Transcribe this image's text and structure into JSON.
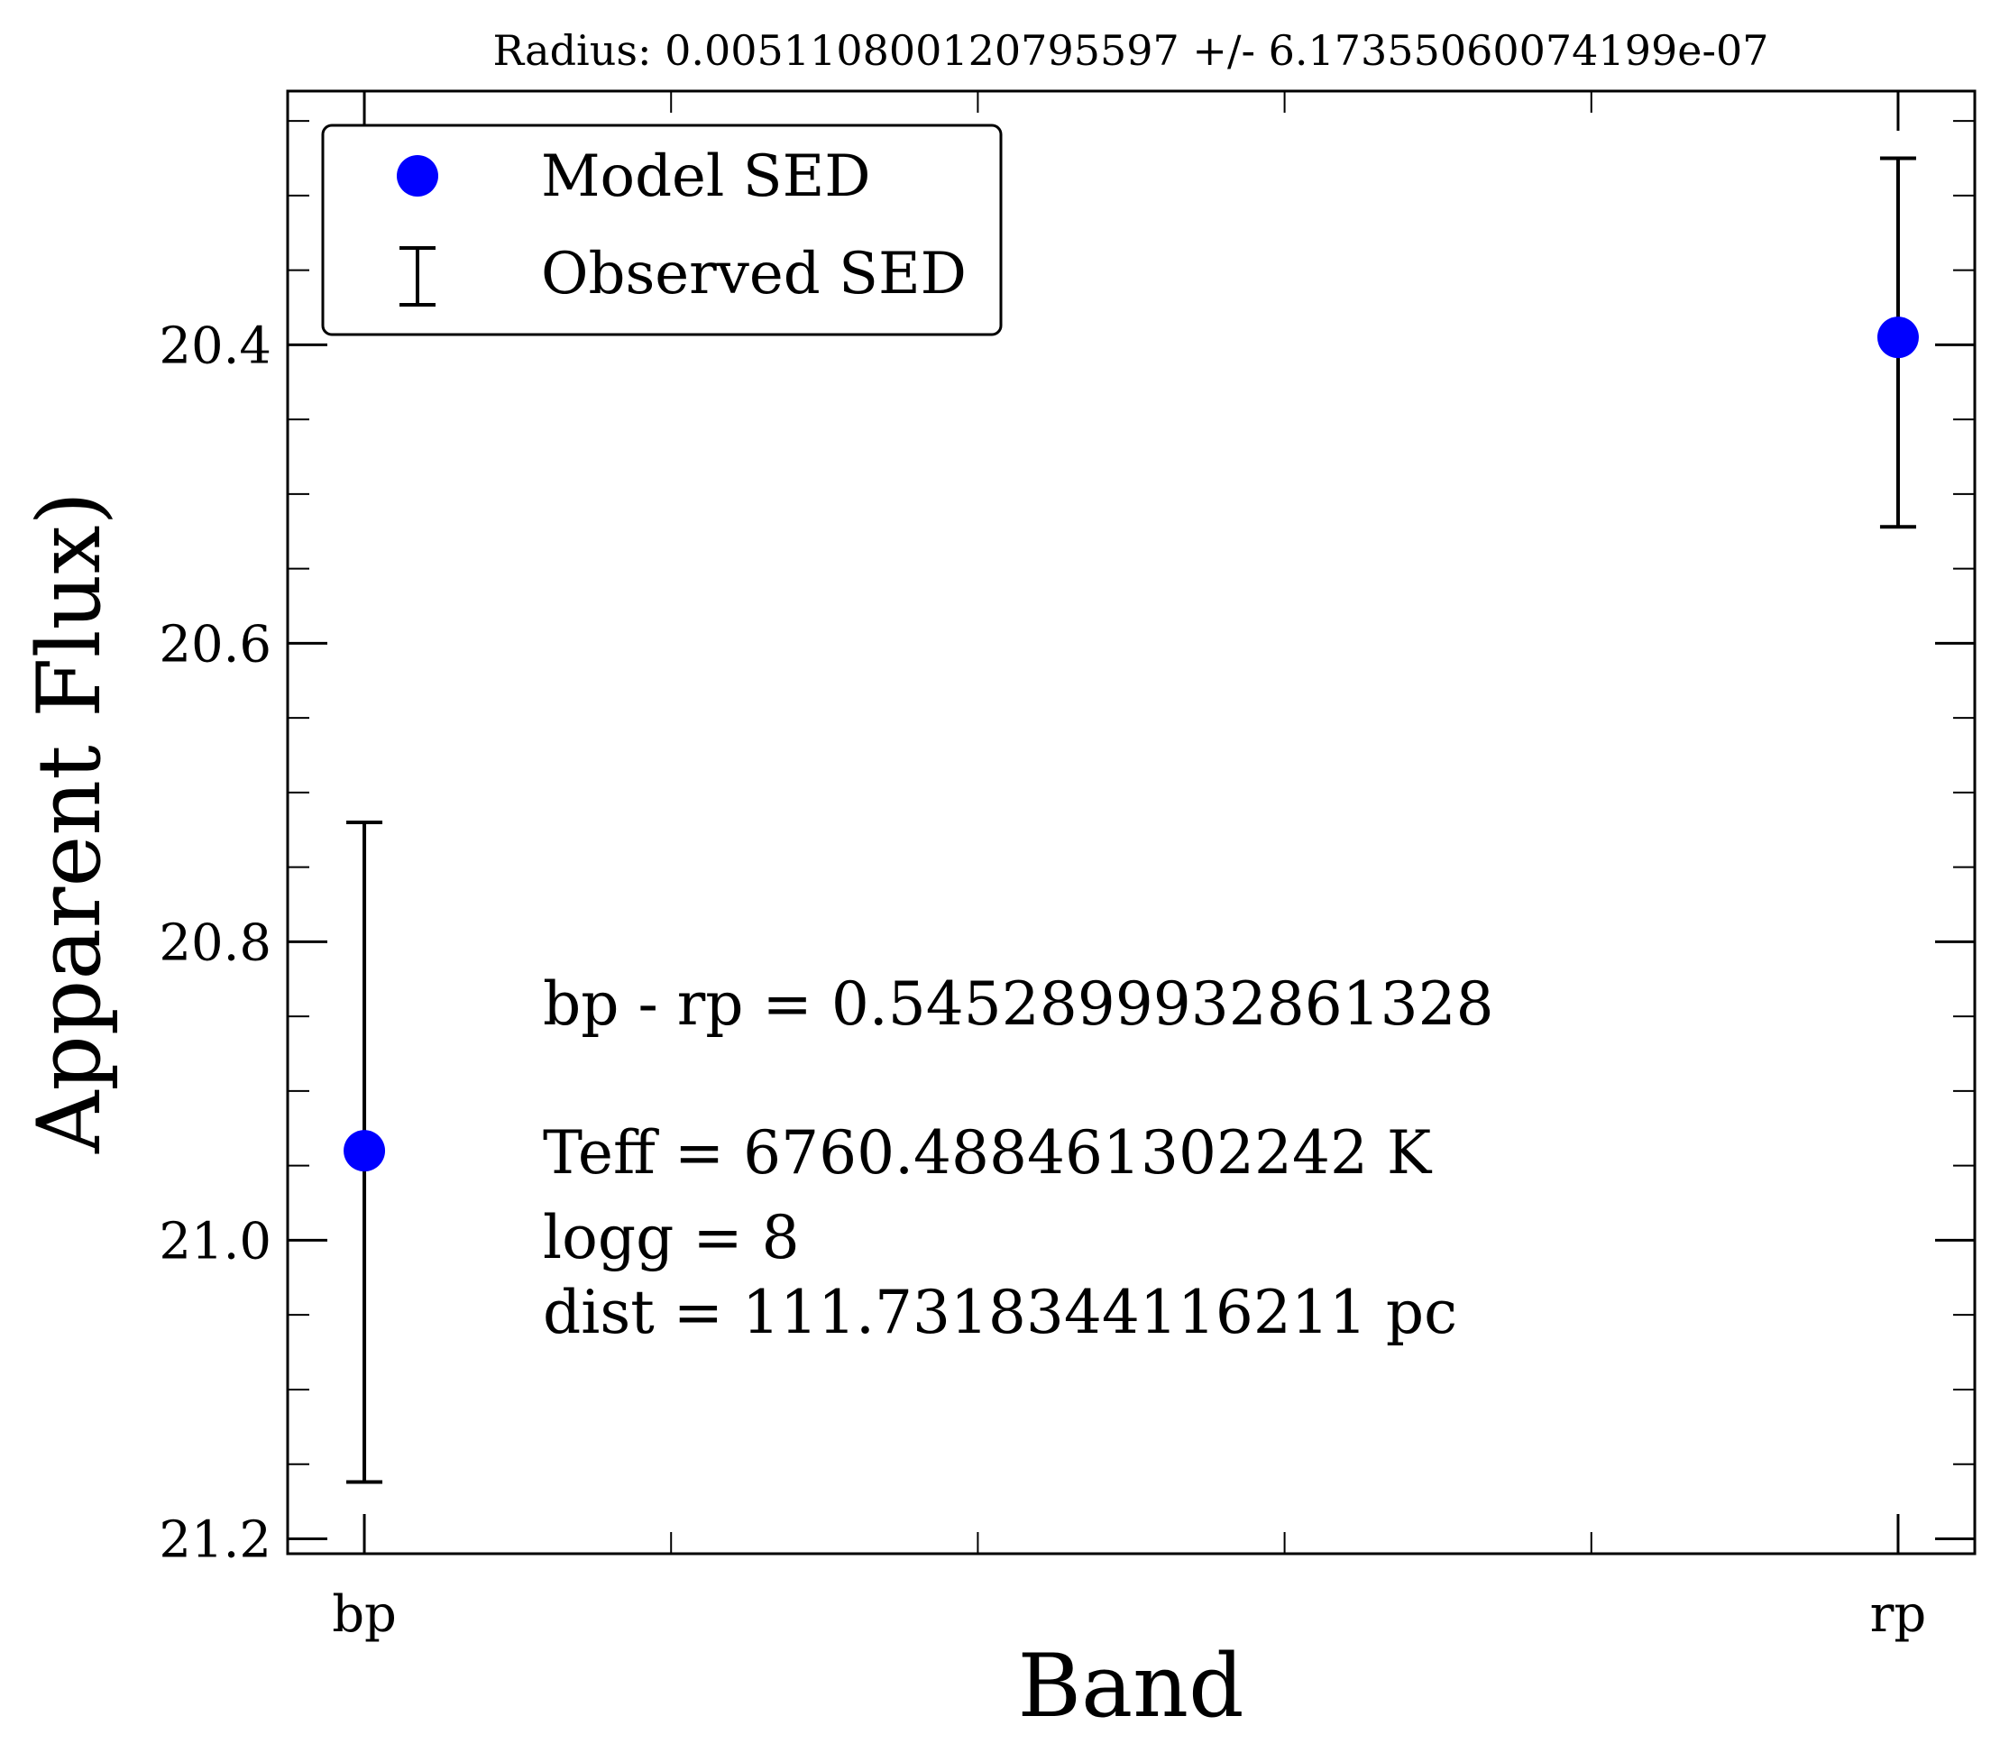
{
  "chart_data": {
    "type": "scatter",
    "title": "Radius: 0.005110800120795597 +/- 6.17355060074199e-07",
    "xlabel": "Band",
    "ylabel": "Apparent Flux)",
    "categories": [
      "bp",
      "rp"
    ],
    "x_range": [
      -0.25,
      5.25
    ],
    "ylim": [
      21.21,
      20.23
    ],
    "y_inverted": true,
    "y_major_ticks": [
      20.4,
      20.6,
      20.8,
      21.0,
      21.2
    ],
    "y_tick_labels": [
      "20.4",
      "20.6",
      "20.8",
      "21.0",
      "21.2"
    ],
    "y_minor_step": 0.05,
    "x_minor_ticks": [
      1,
      2,
      3,
      4
    ],
    "grid": false,
    "legend_position": "top-left",
    "series": [
      {
        "name": "Model SED",
        "kind": "points",
        "color": "#0000ff",
        "x": [
          0,
          5
        ],
        "y": [
          20.94,
          20.395
        ]
      },
      {
        "name": "Observed SED",
        "kind": "errorbars",
        "color": "#000000",
        "x": [
          0,
          5
        ],
        "y_low": [
          20.72,
          20.275
        ],
        "y_high": [
          21.162,
          20.522
        ]
      }
    ],
    "annotations": [
      "bp - rp = 0.5452899932861328",
      "Teff = 6760.488461302242 K",
      "logg = 8",
      "dist = 111.7318344116211 pc"
    ]
  }
}
